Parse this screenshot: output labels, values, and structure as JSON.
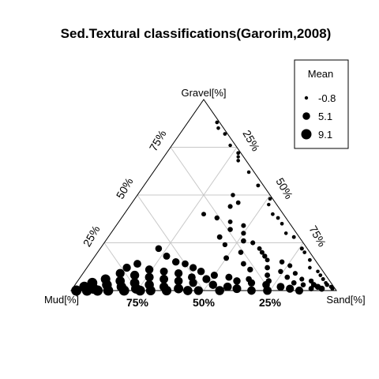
{
  "chart_data": {
    "type": "scatter",
    "subtype": "ternary",
    "title": "Sed.Textural classifications(Garorim,2008)",
    "axes": {
      "top": "Gravel[%]",
      "left": "Mud[%]",
      "right": "Sand[%]"
    },
    "ticks": {
      "gravel": [
        "25%",
        "50%",
        "75%"
      ],
      "sand": [
        "25%",
        "50%",
        "75%"
      ],
      "mud": [
        "25%",
        "50%",
        "75%"
      ]
    },
    "grid": true,
    "grid_color": "#c8c8c8",
    "legend": {
      "title": "Mean",
      "placement": "top-right",
      "entries": [
        {
          "label": "-0.8",
          "value": -0.8
        },
        {
          "label": "5.1",
          "value": 5.1
        },
        {
          "label": "9.1",
          "value": 9.1
        }
      ]
    },
    "point_color": "#000000",
    "points_note_fields": [
      "gravel",
      "sand",
      "mean"
    ],
    "points": [
      [
        88,
        11,
        -0.5
      ],
      [
        85,
        13,
        -0.6
      ],
      [
        82,
        17,
        -0.4
      ],
      [
        76,
        22,
        -0.7
      ],
      [
        72,
        27,
        -0.3
      ],
      [
        70,
        28,
        -0.8
      ],
      [
        68,
        29,
        -0.5
      ],
      [
        62,
        36,
        -0.6
      ],
      [
        55,
        43,
        -0.2
      ],
      [
        48,
        51,
        -0.5
      ],
      [
        45,
        52,
        -0.7
      ],
      [
        40,
        56,
        -0.4
      ],
      [
        38,
        59,
        -0.3
      ],
      [
        35,
        62,
        -0.5
      ],
      [
        30,
        66,
        -0.6
      ],
      [
        28,
        70,
        -0.2
      ],
      [
        22,
        76,
        0.0
      ],
      [
        20,
        78,
        -0.4
      ],
      [
        16,
        82,
        -0.3
      ],
      [
        12,
        84,
        -0.5
      ],
      [
        10,
        88,
        -0.6
      ],
      [
        8,
        90,
        -0.4
      ],
      [
        6,
        92,
        -0.1
      ],
      [
        4,
        94,
        -0.5
      ],
      [
        3,
        95,
        0.5
      ],
      [
        2,
        97,
        0.2
      ],
      [
        1,
        98,
        -0.2
      ],
      [
        50,
        36,
        0.5
      ],
      [
        46,
        40,
        0.8
      ],
      [
        44,
        38,
        1.2
      ],
      [
        40,
        30,
        1.0
      ],
      [
        38,
        36,
        1.5
      ],
      [
        36,
        42,
        0.9
      ],
      [
        34,
        48,
        1.1
      ],
      [
        32,
        44,
        1.6
      ],
      [
        30,
        50,
        1.3
      ],
      [
        28,
        42,
        2.0
      ],
      [
        26,
        52,
        1.8
      ],
      [
        25,
        56,
        1.2
      ],
      [
        24,
        46,
        1.4
      ],
      [
        22,
        60,
        0.9
      ],
      [
        20,
        54,
        1.7
      ],
      [
        20,
        62,
        1.1
      ],
      [
        18,
        64,
        1.5
      ],
      [
        17,
        50,
        2.2
      ],
      [
        16,
        66,
        1.0
      ],
      [
        15,
        72,
        1.6
      ],
      [
        14,
        58,
        2.0
      ],
      [
        13,
        76,
        1.2
      ],
      [
        12,
        68,
        1.9
      ],
      [
        11,
        62,
        2.6
      ],
      [
        10,
        74,
        1.5
      ],
      [
        9,
        80,
        1.3
      ],
      [
        8,
        70,
        2.1
      ],
      [
        7,
        78,
        1.8
      ],
      [
        6,
        84,
        1.2
      ],
      [
        6,
        64,
        2.9
      ],
      [
        5,
        88,
        1.5
      ],
      [
        5,
        72,
        2.6
      ],
      [
        4,
        82,
        1.9
      ],
      [
        3,
        90,
        2.3
      ],
      [
        3,
        86,
        1.6
      ],
      [
        2,
        92,
        2.8
      ],
      [
        1,
        90,
        2.0
      ],
      [
        1,
        94,
        3.0
      ],
      [
        22,
        22,
        4.0
      ],
      [
        18,
        27,
        4.5
      ],
      [
        15,
        32,
        5.0
      ],
      [
        14,
        36,
        4.2
      ],
      [
        14,
        18,
        5.5
      ],
      [
        12,
        15,
        6.0
      ],
      [
        12,
        40,
        4.8
      ],
      [
        11,
        24,
        6.2
      ],
      [
        10,
        30,
        5.6
      ],
      [
        10,
        44,
        5.1
      ],
      [
        9,
        14,
        7.0
      ],
      [
        9,
        36,
        6.0
      ],
      [
        8,
        20,
        7.2
      ],
      [
        8,
        50,
        4.6
      ],
      [
        7,
        26,
        6.8
      ],
      [
        7,
        42,
        5.4
      ],
      [
        7,
        56,
        4.4
      ],
      [
        6,
        10,
        8.0
      ],
      [
        6,
        32,
        6.6
      ],
      [
        6,
        48,
        5.8
      ],
      [
        5,
        16,
        7.6
      ],
      [
        5,
        38,
        6.4
      ],
      [
        5,
        60,
        5.0
      ],
      [
        4,
        22,
        7.8
      ],
      [
        4,
        44,
        6.0
      ],
      [
        4,
        66,
        4.8
      ],
      [
        4,
        6,
        8.8
      ],
      [
        3,
        12,
        8.4
      ],
      [
        3,
        28,
        7.4
      ],
      [
        3,
        52,
        6.2
      ],
      [
        3,
        72,
        5.2
      ],
      [
        2,
        18,
        8.2
      ],
      [
        2,
        34,
        7.0
      ],
      [
        2,
        58,
        6.4
      ],
      [
        2,
        78,
        5.6
      ],
      [
        2,
        4,
        9.0
      ],
      [
        1,
        8,
        9.1
      ],
      [
        1,
        24,
        8.6
      ],
      [
        1,
        40,
        7.8
      ],
      [
        1,
        62,
        6.8
      ],
      [
        1,
        82,
        6.0
      ],
      [
        0,
        14,
        8.8
      ],
      [
        0,
        30,
        8.0
      ],
      [
        0,
        48,
        7.2
      ],
      [
        0,
        68,
        6.4
      ],
      [
        0,
        86,
        5.8
      ],
      [
        0,
        2,
        9.1
      ],
      [
        0,
        20,
        8.9
      ],
      [
        0,
        36,
        8.2
      ],
      [
        0,
        56,
        7.4
      ],
      [
        0,
        74,
        6.6
      ],
      [
        0,
        6,
        9.0
      ],
      [
        0,
        44,
        7.6
      ],
      [
        0,
        10,
        9.0
      ],
      [
        0,
        26,
        8.6
      ]
    ]
  }
}
